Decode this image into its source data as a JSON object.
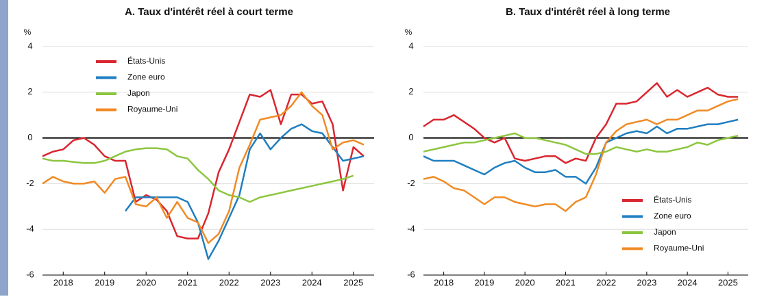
{
  "chart_data": [
    {
      "type": "line",
      "title": "A. Taux d'intérêt réel à court terme",
      "y_unit": "%",
      "x": [
        2018,
        2018.25,
        2018.5,
        2018.75,
        2019,
        2019.25,
        2019.5,
        2019.75,
        2020,
        2020.25,
        2020.5,
        2020.75,
        2021,
        2021.25,
        2021.5,
        2021.75,
        2022,
        2022.25,
        2022.5,
        2022.75,
        2023,
        2023.25,
        2023.5,
        2023.75,
        2024,
        2024.25,
        2024.5,
        2024.75,
        2025,
        2025.25,
        2025.5,
        2025.75
      ],
      "xlim": [
        2018,
        2026
      ],
      "xticks": [
        {
          "value": 2018.5,
          "label": "2018"
        },
        {
          "value": 2019.5,
          "label": "2019"
        },
        {
          "value": 2020.5,
          "label": "2020"
        },
        {
          "value": 2021.5,
          "label": "2021"
        },
        {
          "value": 2022.5,
          "label": "2022"
        },
        {
          "value": 2023.5,
          "label": "2023"
        },
        {
          "value": 2024.5,
          "label": "2024"
        },
        {
          "value": 2025.5,
          "label": "2025"
        }
      ],
      "ylim": [
        -6,
        4
      ],
      "yticks": [
        -6,
        -4,
        -2,
        0,
        2,
        4
      ],
      "grid": true,
      "zero_line": true,
      "legend": "upper left",
      "series": [
        {
          "name": "États-Unis",
          "color": "#d9262f",
          "values": [
            -0.8,
            -0.6,
            -0.5,
            -0.1,
            0,
            -0.3,
            -0.8,
            -1.0,
            -1.0,
            -2.8,
            -2.5,
            -2.7,
            -3.2,
            -4.3,
            -4.4,
            -4.4,
            -3.3,
            -1.5,
            -0.5,
            0.7,
            1.9,
            1.8,
            2.1,
            0.6,
            1.9,
            1.9,
            1.5,
            1.6,
            0.6,
            -2.3,
            -0.4,
            -0.8
          ]
        },
        {
          "name": "Zone euro",
          "color": "#1f7ec1",
          "values": [
            null,
            null,
            null,
            null,
            null,
            null,
            null,
            null,
            -3.2,
            -2.6,
            -2.6,
            -2.6,
            -2.6,
            -2.6,
            -2.8,
            -3.7,
            -5.3,
            -4.5,
            -3.5,
            -2.5,
            -0.5,
            0.2,
            -0.5,
            0.0,
            0.4,
            0.6,
            0.3,
            0.2,
            -0.4,
            -1.0,
            -0.9,
            -0.8
          ]
        },
        {
          "name": "Japon",
          "color": "#8cc63f",
          "values": [
            -0.9,
            -1.0,
            -1.0,
            -1.05,
            -1.1,
            -1.1,
            -1.0,
            -0.8,
            -0.6,
            -0.5,
            -0.45,
            -0.45,
            -0.5,
            -0.8,
            -0.9,
            -1.4,
            -1.8,
            -2.3,
            -2.5,
            -2.6,
            -2.8,
            -2.6,
            -2.5,
            -2.4,
            -2.3,
            -2.2,
            -2.1,
            -2.0,
            -1.9,
            -1.8,
            -1.65,
            null
          ]
        },
        {
          "name": "Royaume-Uni",
          "color": "#f08a24",
          "values": [
            -2.0,
            -1.7,
            -1.9,
            -2.0,
            -2.0,
            -1.9,
            -2.4,
            -1.8,
            -1.7,
            -2.9,
            -3.0,
            -2.6,
            -3.5,
            -2.8,
            -3.5,
            -3.7,
            -4.6,
            -4.2,
            -3.2,
            -1.3,
            -0.3,
            0.8,
            0.9,
            1.0,
            1.4,
            2.0,
            1.4,
            1.0,
            -0.5,
            -0.2,
            -0.1,
            -0.3
          ]
        }
      ]
    },
    {
      "type": "line",
      "title": "B. Taux d'intérêt réel à long terme",
      "y_unit": "%",
      "x": [
        2018,
        2018.25,
        2018.5,
        2018.75,
        2019,
        2019.25,
        2019.5,
        2019.75,
        2020,
        2020.25,
        2020.5,
        2020.75,
        2021,
        2021.25,
        2021.5,
        2021.75,
        2022,
        2022.25,
        2022.5,
        2022.75,
        2023,
        2023.25,
        2023.5,
        2023.75,
        2024,
        2024.25,
        2024.5,
        2024.75,
        2025,
        2025.25,
        2025.5,
        2025.75
      ],
      "xlim": [
        2018,
        2026
      ],
      "xticks": [
        {
          "value": 2018.5,
          "label": "2018"
        },
        {
          "value": 2019.5,
          "label": "2019"
        },
        {
          "value": 2020.5,
          "label": "2020"
        },
        {
          "value": 2021.5,
          "label": "2021"
        },
        {
          "value": 2022.5,
          "label": "2022"
        },
        {
          "value": 2023.5,
          "label": "2023"
        },
        {
          "value": 2024.5,
          "label": "2024"
        },
        {
          "value": 2025.5,
          "label": "2025"
        }
      ],
      "ylim": [
        -6,
        4
      ],
      "yticks": [
        -6,
        -4,
        -2,
        0,
        2,
        4
      ],
      "grid": true,
      "zero_line": true,
      "legend": "lower right",
      "series": [
        {
          "name": "États-Unis",
          "color": "#d9262f",
          "values": [
            0.5,
            0.8,
            0.8,
            1.0,
            0.7,
            0.4,
            0.0,
            -0.2,
            0.0,
            -0.9,
            -1.0,
            -0.9,
            -0.8,
            -0.8,
            -1.1,
            -0.9,
            -1.0,
            0.0,
            0.6,
            1.5,
            1.5,
            1.6,
            2.0,
            2.4,
            1.8,
            2.1,
            1.8,
            2.0,
            2.2,
            1.9,
            1.8,
            1.8
          ]
        },
        {
          "name": "Zone euro",
          "color": "#1f7ec1",
          "values": [
            -0.8,
            -1.0,
            -1.0,
            -1.0,
            -1.2,
            -1.4,
            -1.6,
            -1.3,
            -1.1,
            -1.0,
            -1.3,
            -1.5,
            -1.5,
            -1.4,
            -1.7,
            -1.7,
            -2.0,
            -1.3,
            -0.2,
            0.0,
            0.2,
            0.3,
            0.2,
            0.5,
            0.2,
            0.4,
            0.4,
            0.5,
            0.6,
            0.6,
            0.7,
            0.8
          ]
        },
        {
          "name": "Japon",
          "color": "#8cc63f",
          "values": [
            -0.6,
            -0.5,
            -0.4,
            -0.3,
            -0.2,
            -0.2,
            -0.1,
            0.0,
            0.1,
            0.2,
            0.0,
            0.0,
            -0.1,
            -0.2,
            -0.3,
            -0.5,
            -0.7,
            -0.7,
            -0.6,
            -0.4,
            -0.5,
            -0.6,
            -0.5,
            -0.6,
            -0.6,
            -0.5,
            -0.4,
            -0.2,
            -0.3,
            -0.1,
            0.0,
            0.1
          ]
        },
        {
          "name": "Royaume-Uni",
          "color": "#f08a24",
          "values": [
            -1.8,
            -1.7,
            -1.9,
            -2.2,
            -2.3,
            -2.6,
            -2.9,
            -2.6,
            -2.6,
            -2.8,
            -2.9,
            -3.0,
            -2.9,
            -2.9,
            -3.2,
            -2.8,
            -2.6,
            -1.6,
            -0.2,
            0.3,
            0.6,
            0.7,
            0.8,
            0.6,
            0.8,
            0.8,
            1.0,
            1.2,
            1.2,
            1.4,
            1.6,
            1.7
          ]
        }
      ]
    }
  ]
}
